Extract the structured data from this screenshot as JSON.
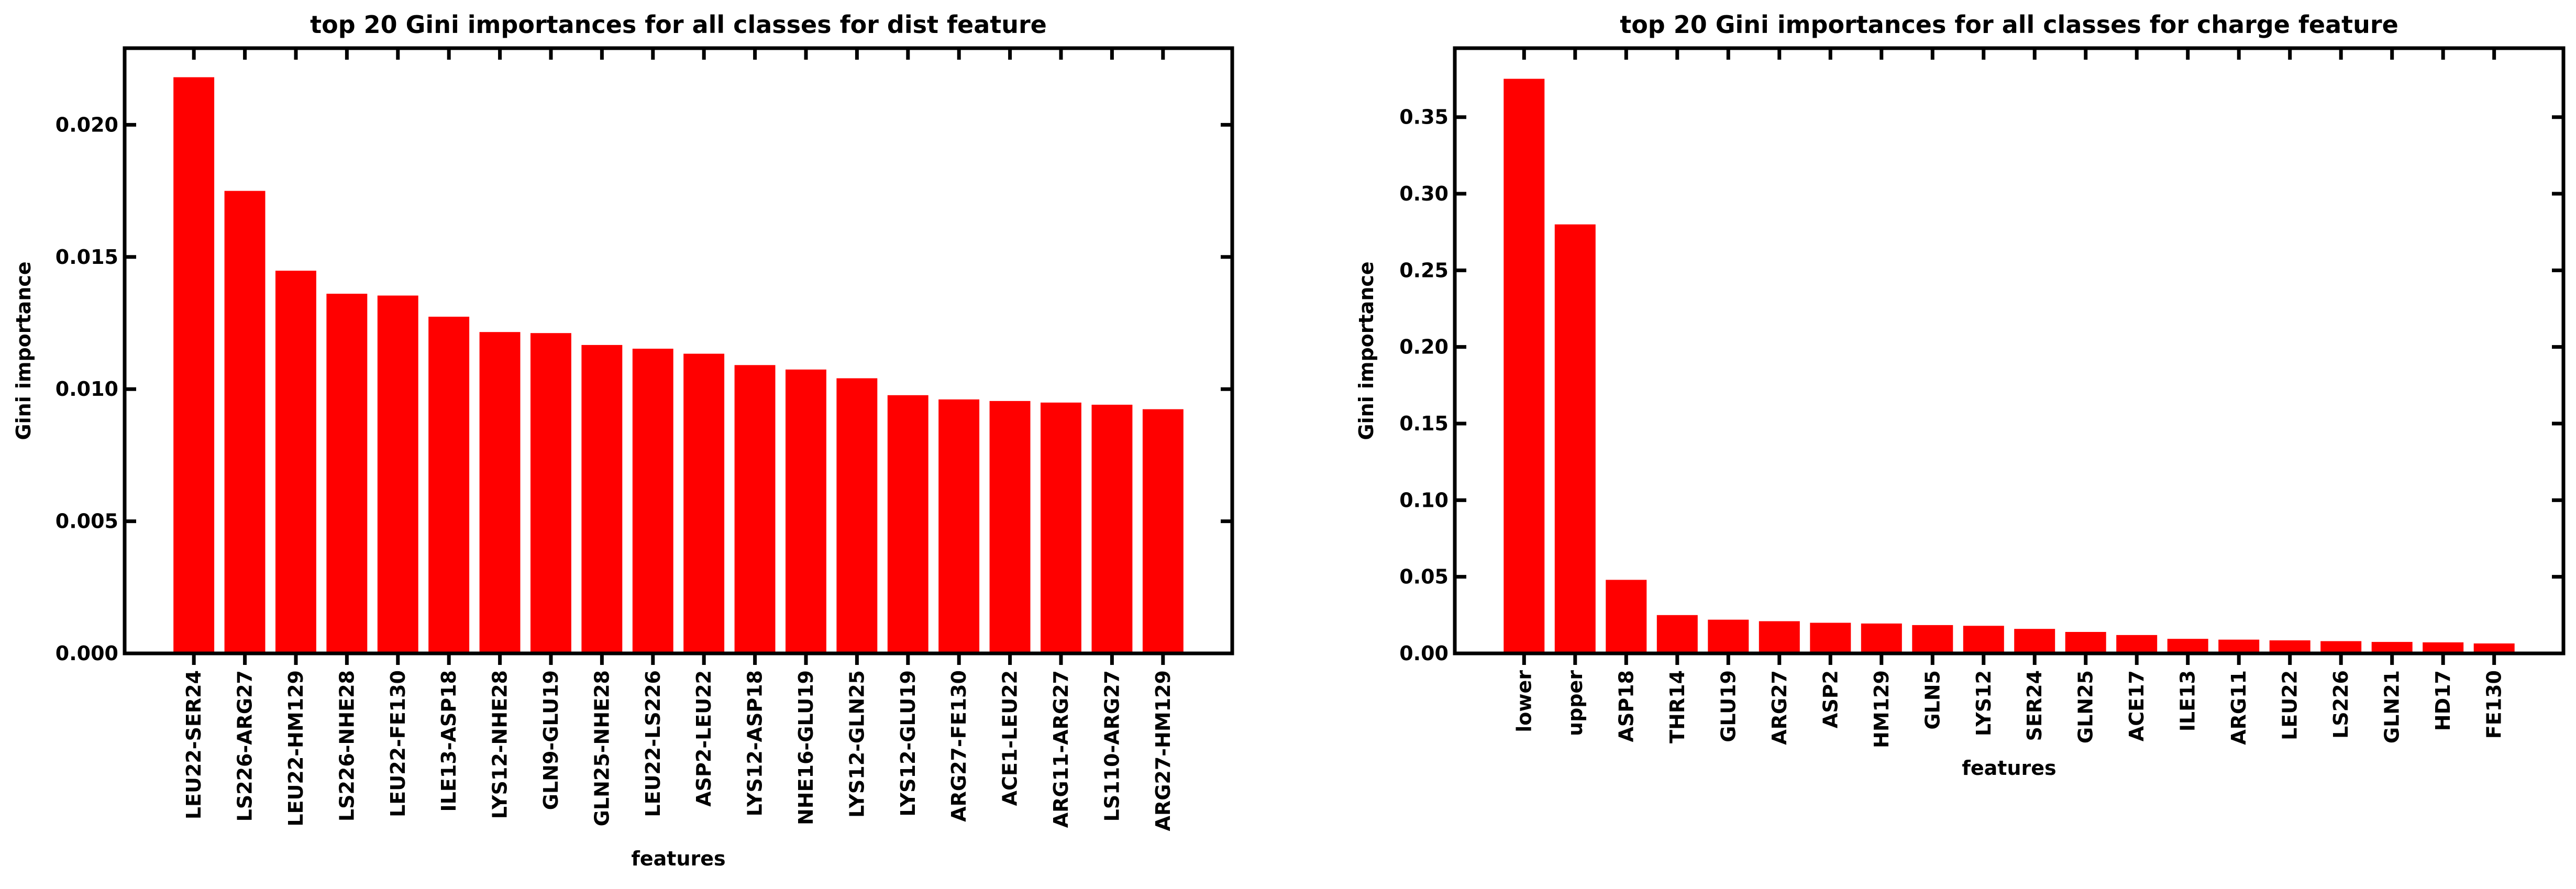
{
  "chart_data": [
    {
      "type": "bar",
      "title": "top 20 Gini importances for all classes for dist feature",
      "xlabel": "features",
      "ylabel": "Gini importance",
      "ylim": [
        0,
        0.0229
      ],
      "yticks": [
        "0.000",
        "0.005",
        "0.010",
        "0.015",
        "0.020"
      ],
      "ytick_values": [
        0,
        0.005,
        0.01,
        0.015,
        0.02
      ],
      "grid": false,
      "bar_color": "#ff0000",
      "categories": [
        "LEU22-SER24",
        "LS226-ARG27",
        "LEU22-HM129",
        "LS226-NHE28",
        "LEU22-FE130",
        "ILE13-ASP18",
        "LYS12-NHE28",
        "GLN9-GLU19",
        "GLN25-NHE28",
        "LEU22-LS226",
        "ASP2-LEU22",
        "LYS12-ASP18",
        "NHE16-GLU19",
        "LYS12-GLN25",
        "LYS12-GLU19",
        "ARG27-FE130",
        "ACE1-LEU22",
        "ARG11-ARG27",
        "LS110-ARG27",
        "ARG27-HM129"
      ],
      "values": [
        0.0218,
        0.0175,
        0.01448,
        0.01361,
        0.01354,
        0.01274,
        0.01216,
        0.01212,
        0.01167,
        0.01153,
        0.01134,
        0.01091,
        0.01074,
        0.01041,
        0.00977,
        0.00961,
        0.00955,
        0.00949,
        0.00941,
        0.00924
      ]
    },
    {
      "type": "bar",
      "title": "top 20 Gini importances for all classes for charge feature",
      "xlabel": "features",
      "ylabel": "Gini importance",
      "ylim": [
        0,
        0.395
      ],
      "yticks": [
        "0.00",
        "0.05",
        "0.10",
        "0.15",
        "0.20",
        "0.25",
        "0.30",
        "0.35"
      ],
      "ytick_values": [
        0,
        0.05,
        0.1,
        0.15,
        0.2,
        0.25,
        0.3,
        0.35
      ],
      "grid": false,
      "bar_color": "#ff0000",
      "categories": [
        "lower",
        "upper",
        "ASP18",
        "THR14",
        "GLU19",
        "ARG27",
        "ASP2",
        "HM129",
        "GLN5",
        "LYS12",
        "SER24",
        "GLN25",
        "ACE17",
        "ILE13",
        "ARG11",
        "LEU22",
        "LS226",
        "GLN21",
        "HD17",
        "FE130"
      ],
      "values": [
        0.375,
        0.28,
        0.048,
        0.025,
        0.022,
        0.021,
        0.02,
        0.0195,
        0.0185,
        0.018,
        0.016,
        0.014,
        0.012,
        0.0095,
        0.009,
        0.0085,
        0.008,
        0.0075,
        0.0072,
        0.0065
      ]
    }
  ]
}
